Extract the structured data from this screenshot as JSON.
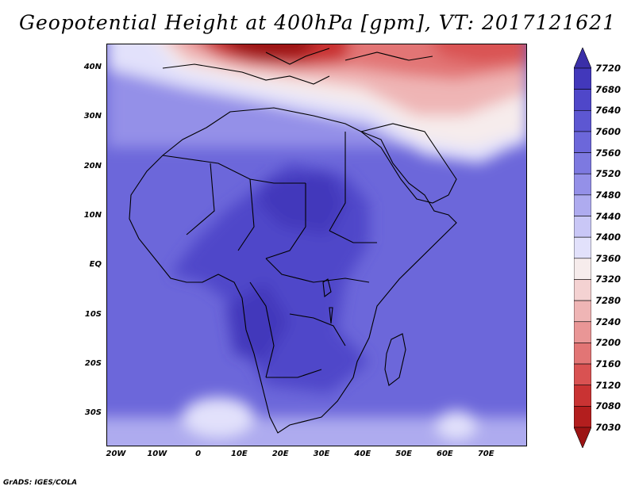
{
  "title": "Geopotential Height at 400hPa [gpm], VT: 2017121621",
  "lat_labels": [
    "40N",
    "30N",
    "20N",
    "10N",
    "EQ",
    "10S",
    "20S",
    "30S"
  ],
  "lon_labels": [
    "20W",
    "10W",
    "0",
    "10E",
    "20E",
    "30E",
    "40E",
    "50E",
    "60E",
    "70E"
  ],
  "colorbar": {
    "labels": [
      "7720",
      "7680",
      "7640",
      "7600",
      "7560",
      "7520",
      "7480",
      "7440",
      "7400",
      "7360",
      "7320",
      "7280",
      "7240",
      "7200",
      "7160",
      "7120",
      "7080",
      "7030"
    ],
    "colors": [
      "#3a2fa8",
      "#4238bb",
      "#4f47c9",
      "#5d57d2",
      "#6c67da",
      "#7d79e0",
      "#9490e8",
      "#aeabef",
      "#c9c7f6",
      "#e2e1fb",
      "#f6ecec",
      "#f4d2d2",
      "#efb5b5",
      "#e99696",
      "#e27575",
      "#d95252",
      "#c93333",
      "#b31e1e",
      "#9c1414"
    ]
  },
  "credit": "GrADS: IGES/COLA"
}
